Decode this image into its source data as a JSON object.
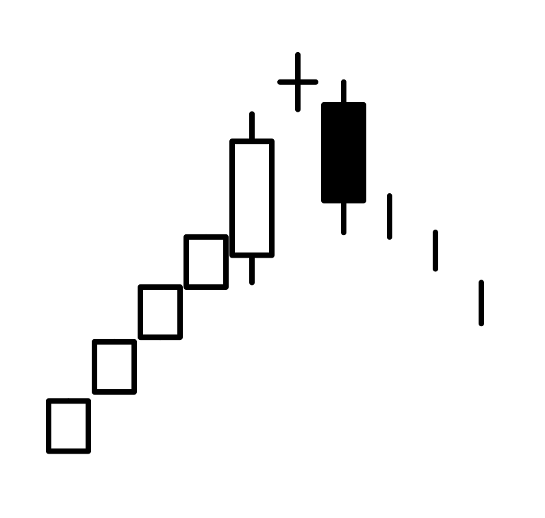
{
  "chart_data": {
    "type": "candlestick",
    "title": "",
    "xlabel": "",
    "ylabel": "",
    "axes_visible": false,
    "grid": false,
    "legend": "none",
    "ylim": [
      0,
      100
    ],
    "candles": [
      {
        "o": 7,
        "h": 18,
        "l": 7,
        "c": 18
      },
      {
        "o": 20,
        "h": 31,
        "l": 20,
        "c": 31
      },
      {
        "o": 32,
        "h": 43,
        "l": 32,
        "c": 43
      },
      {
        "o": 43,
        "h": 54,
        "l": 43,
        "c": 54
      },
      {
        "o": 50,
        "h": 81,
        "l": 44,
        "c": 75
      },
      {
        "o": 88,
        "h": 94,
        "l": 82,
        "c": 88
      },
      {
        "o": 83,
        "h": 88,
        "l": 55,
        "c": 62
      },
      {
        "o": 62,
        "h": 63,
        "l": 54,
        "c": 54
      },
      {
        "o": 55,
        "h": 55,
        "l": 47,
        "c": 47
      },
      {
        "o": 44,
        "h": 44,
        "l": 35,
        "c": 35
      }
    ]
  },
  "colors": {
    "background": "#ffffff",
    "ink": "#000000",
    "up_fill": "#ffffff",
    "down_fill": "#000000"
  }
}
